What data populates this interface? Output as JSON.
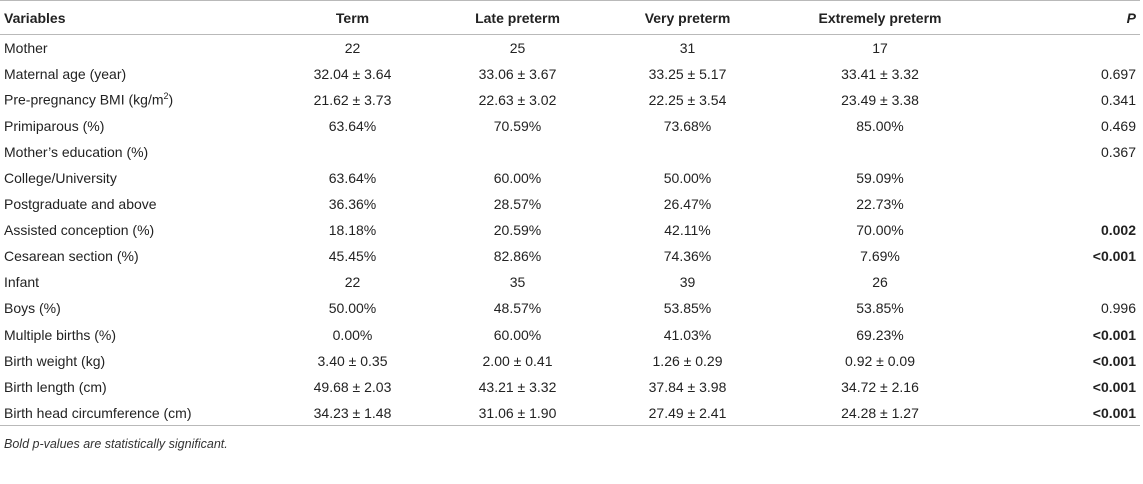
{
  "table": {
    "headers": [
      "Variables",
      "Term",
      "Late preterm",
      "Very preterm",
      "Extremely preterm",
      "P"
    ],
    "rows": [
      {
        "label": "Mother",
        "cells": [
          "22",
          "25",
          "31",
          "17"
        ],
        "p": "",
        "sig": false
      },
      {
        "label": "Maternal age (year)",
        "cells": [
          "32.04 ± 3.64",
          "33.06 ± 3.67",
          "33.25 ± 5.17",
          "33.41 ± 3.32"
        ],
        "p": "0.697",
        "sig": false
      },
      {
        "label": "Pre-pregnancy BMI (kg/m",
        "label_sup": "2",
        "label_after": ")",
        "cells": [
          "21.62 ± 3.73",
          "22.63 ± 3.02",
          "22.25 ± 3.54",
          "23.49 ± 3.38"
        ],
        "p": "0.341",
        "sig": false
      },
      {
        "label": "Primiparous (%)",
        "cells": [
          "63.64%",
          "70.59%",
          "73.68%",
          "85.00%"
        ],
        "p": "0.469",
        "sig": false
      },
      {
        "label": "Mother’s education (%)",
        "cells": [
          "",
          "",
          "",
          ""
        ],
        "p": "0.367",
        "sig": false
      },
      {
        "label": "College/University",
        "cells": [
          "63.64%",
          "60.00%",
          "50.00%",
          "59.09%"
        ],
        "p": "",
        "sig": false
      },
      {
        "label": "Postgraduate and above",
        "cells": [
          "36.36%",
          "28.57%",
          "26.47%",
          "22.73%"
        ],
        "p": "",
        "sig": false
      },
      {
        "label": "Assisted conception (%)",
        "cells": [
          "18.18%",
          "20.59%",
          "42.11%",
          "70.00%"
        ],
        "p": "0.002",
        "sig": true
      },
      {
        "label": "Cesarean section (%)",
        "cells": [
          "45.45%",
          "82.86%",
          "74.36%",
          "7.69%"
        ],
        "p": "<0.001",
        "sig": true
      },
      {
        "label": "Infant",
        "cells": [
          "22",
          "35",
          "39",
          "26"
        ],
        "p": "",
        "sig": false
      },
      {
        "label": "Boys (%)",
        "cells": [
          "50.00%",
          "48.57%",
          "53.85%",
          "53.85%"
        ],
        "p": "0.996",
        "sig": false
      },
      {
        "label": "Multiple births (%)",
        "cells": [
          "0.00%",
          "60.00%",
          "41.03%",
          "69.23%"
        ],
        "p": "<0.001",
        "sig": true
      },
      {
        "label": "Birth weight (kg)",
        "cells": [
          "3.40 ± 0.35",
          "2.00 ± 0.41",
          "1.26 ± 0.29",
          "0.92 ± 0.09"
        ],
        "p": "<0.001",
        "sig": true
      },
      {
        "label": "Birth length (cm)",
        "cells": [
          "49.68 ± 2.03",
          "43.21 ± 3.32",
          "37.84 ± 3.98",
          "34.72 ± 2.16"
        ],
        "p": "<0.001",
        "sig": true
      },
      {
        "label": "Birth head circumference (cm)",
        "cells": [
          "34.23 ± 1.48",
          "31.06 ± 1.90",
          "27.49 ± 2.41",
          "24.28 ± 1.27"
        ],
        "p": "<0.001",
        "sig": true
      }
    ],
    "footnote": "Bold p-values are statistically significant."
  }
}
